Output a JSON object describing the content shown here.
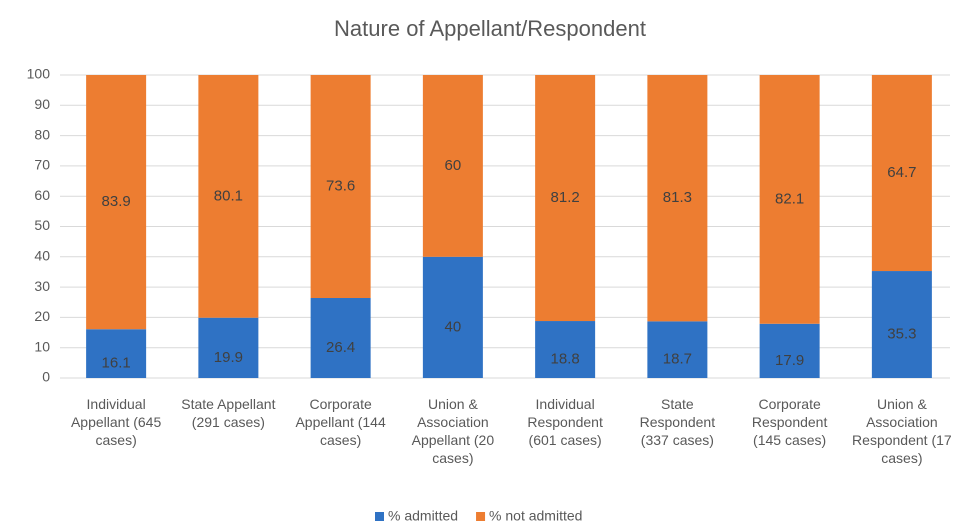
{
  "chart_data": {
    "type": "stacked_bar",
    "title": "Nature of Appellant/Respondent",
    "categories": [
      "Individual Appellant (645 cases)",
      "State Appellant (291 cases)",
      "Corporate Appellant (144 cases)",
      "Union & Association Appellant (20 cases)",
      "Individual Respondent (601 cases)",
      "State Respondent (337 cases)",
      "Corporate Respondent (145 cases)",
      "Union & Association Respondent (17 cases)"
    ],
    "series": [
      {
        "name": "% admitted",
        "color": "#2f72c4",
        "values": [
          16.1,
          19.9,
          26.4,
          40,
          18.8,
          18.7,
          17.9,
          35.3
        ]
      },
      {
        "name": "% not admitted",
        "color": "#ed7d31",
        "values": [
          83.9,
          80.1,
          73.6,
          60,
          81.2,
          81.3,
          82.1,
          64.7
        ]
      }
    ],
    "ylim": [
      0,
      100
    ],
    "yticks": [
      0,
      10,
      20,
      30,
      40,
      50,
      60,
      70,
      80,
      90,
      100
    ],
    "grid": true,
    "legend": "bottom"
  }
}
